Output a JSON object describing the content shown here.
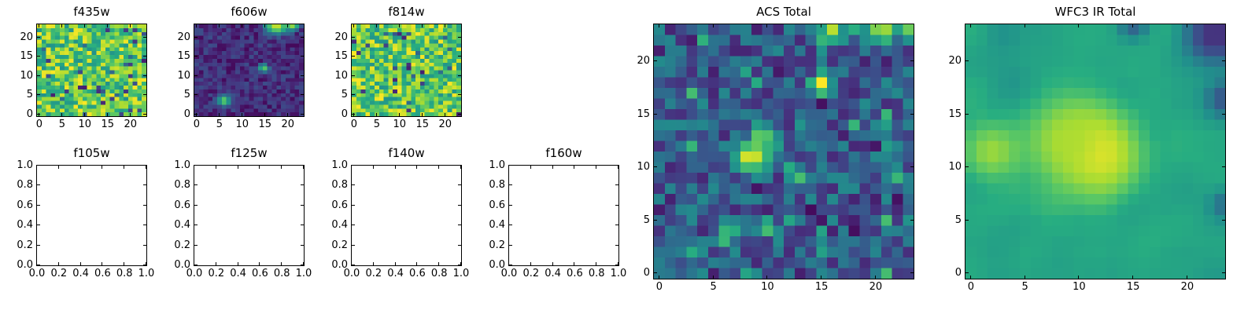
{
  "figure": {
    "background": "#ffffff",
    "text_color": "#000000",
    "axes_color": "#000000"
  },
  "viridis_stops": [
    [
      0.0,
      "#440154"
    ],
    [
      0.125,
      "#472f7d"
    ],
    [
      0.25,
      "#3b518b"
    ],
    [
      0.375,
      "#2c718e"
    ],
    [
      0.5,
      "#21918c"
    ],
    [
      0.625,
      "#27ad81"
    ],
    [
      0.75,
      "#5cc863"
    ],
    [
      0.875,
      "#aadc32"
    ],
    [
      1.0,
      "#fde725"
    ]
  ],
  "chart_data": [
    {
      "type": "heatmap",
      "title": "f435w",
      "colormap": "viridis",
      "grid": 24,
      "xlim": [
        -0.5,
        23.5
      ],
      "ylim": [
        -0.5,
        23.5
      ],
      "xticks": {
        "values": [
          0,
          5,
          10,
          15,
          20
        ],
        "labels": [
          "0",
          "5",
          "10",
          "15",
          "20"
        ]
      },
      "yticks": {
        "values": [
          0,
          5,
          10,
          15,
          20
        ],
        "labels": [
          "0",
          "5",
          "10",
          "15",
          "20"
        ]
      },
      "seed": 11,
      "smooth": 0,
      "base": {
        "min": 0.5,
        "range": 0.5,
        "dark_frac": 0.06,
        "dark_min": 0.08,
        "dark_range": 0.3
      },
      "blobs": []
    },
    {
      "type": "heatmap",
      "title": "f606w",
      "colormap": "viridis",
      "grid": 24,
      "xlim": [
        -0.5,
        23.5
      ],
      "ylim": [
        -0.5,
        23.5
      ],
      "xticks": {
        "values": [
          0,
          5,
          10,
          15,
          20
        ],
        "labels": [
          "0",
          "5",
          "10",
          "15",
          "20"
        ]
      },
      "yticks": {
        "values": [
          0,
          5,
          10,
          15,
          20
        ],
        "labels": [
          "0",
          "5",
          "10",
          "15",
          "20"
        ]
      },
      "seed": 22,
      "smooth": 0,
      "base": {
        "min": 0.02,
        "range": 0.22,
        "dark_frac": 0,
        "dark_min": 0,
        "dark_range": 0
      },
      "blobs": [
        {
          "x": 17.5,
          "y": 23.3,
          "v": 0.95,
          "r": 1.7
        },
        {
          "x": 21.0,
          "y": 23.5,
          "v": 0.9,
          "r": 1.0
        },
        {
          "x": 14.7,
          "y": 12.0,
          "v": 0.78,
          "r": 0.75
        },
        {
          "x": 6.0,
          "y": 3.5,
          "v": 0.8,
          "r": 0.95
        }
      ]
    },
    {
      "type": "heatmap",
      "title": "f814w",
      "colormap": "viridis",
      "grid": 24,
      "xlim": [
        -0.5,
        23.5
      ],
      "ylim": [
        -0.5,
        23.5
      ],
      "xticks": {
        "values": [
          0,
          5,
          10,
          15,
          20
        ],
        "labels": [
          "0",
          "5",
          "10",
          "15",
          "20"
        ]
      },
      "yticks": {
        "values": [
          0,
          5,
          10,
          15,
          20
        ],
        "labels": [
          "0",
          "5",
          "10",
          "15",
          "20"
        ]
      },
      "seed": 33,
      "smooth": 0,
      "base": {
        "min": 0.5,
        "range": 0.5,
        "dark_frac": 0.05,
        "dark_min": 0.08,
        "dark_range": 0.3
      },
      "blobs": []
    },
    {
      "type": "heatmap",
      "title": "ACS Total",
      "colormap": "viridis",
      "grid": 24,
      "xlim": [
        -0.5,
        23.5
      ],
      "ylim": [
        -0.5,
        23.5
      ],
      "xticks": {
        "values": [
          0,
          5,
          10,
          15,
          20
        ],
        "labels": [
          "0",
          "5",
          "10",
          "15",
          "20"
        ]
      },
      "yticks": {
        "values": [
          0,
          5,
          10,
          15,
          20
        ],
        "labels": [
          "0",
          "5",
          "10",
          "15",
          "20"
        ]
      },
      "seed": 44,
      "smooth": 0,
      "base": {
        "min": 0.08,
        "range": 0.4,
        "dark_frac": 0.05,
        "dark_min": 0.02,
        "dark_range": 0.1,
        "bright_frac": 0.05,
        "bright_min": 0.5,
        "bright_range": 0.2
      },
      "blobs": [
        {
          "x": 8.5,
          "y": 11.0,
          "v": 1.0,
          "r": 1.15
        },
        {
          "x": 9.6,
          "y": 12.8,
          "v": 0.8,
          "r": 0.85
        },
        {
          "x": 15.0,
          "y": 18.0,
          "v": 1.0,
          "r": 0.65
        },
        {
          "x": 16.0,
          "y": 23.3,
          "v": 0.95,
          "r": 0.85
        },
        {
          "x": 20.5,
          "y": 23.5,
          "v": 0.92,
          "r": 1.25
        },
        {
          "x": 23.3,
          "y": 23.5,
          "v": 0.9,
          "r": 0.7
        },
        {
          "x": 13.0,
          "y": 9.0,
          "v": 0.7,
          "r": 0.7
        },
        {
          "x": 6.5,
          "y": 4.0,
          "v": 0.72,
          "r": 0.85
        },
        {
          "x": 3.0,
          "y": 2.0,
          "v": 0.62,
          "r": 0.8
        },
        {
          "x": 21.5,
          "y": 10.5,
          "v": 0.55,
          "r": 0.65
        }
      ]
    },
    {
      "type": "heatmap",
      "title": "WFC3 IR Total",
      "colormap": "viridis",
      "grid": 24,
      "xlim": [
        -0.5,
        23.5
      ],
      "ylim": [
        -0.5,
        23.5
      ],
      "xticks": {
        "values": [
          0,
          5,
          10,
          15,
          20
        ],
        "labels": [
          "0",
          "5",
          "10",
          "15",
          "20"
        ]
      },
      "yticks": {
        "values": [
          0,
          5,
          10,
          15,
          20
        ],
        "labels": [
          "0",
          "5",
          "10",
          "15",
          "20"
        ]
      },
      "seed": 55,
      "smooth": 2,
      "base": {
        "min": 0.42,
        "range": 0.34,
        "dark_frac": 0,
        "dark_min": 0,
        "dark_range": 0
      },
      "blobs": [
        {
          "x": 11.5,
          "y": 11.5,
          "v": 1.0,
          "r": 3.0
        },
        {
          "x": 9.0,
          "y": 12.5,
          "v": 0.88,
          "r": 2.6
        },
        {
          "x": 2.0,
          "y": 11.5,
          "v": 0.85,
          "r": 2.0
        },
        {
          "x": 22.5,
          "y": 22.5,
          "v": 0.12,
          "r": 2.1
        },
        {
          "x": 23.5,
          "y": 16.5,
          "v": 0.25,
          "r": 1.3
        },
        {
          "x": 15.0,
          "y": 23.5,
          "v": 0.3,
          "r": 1.0
        },
        {
          "x": 23.5,
          "y": 6.5,
          "v": 0.35,
          "r": 0.9
        },
        {
          "x": 3.0,
          "y": 22.5,
          "v": 0.5,
          "r": 1.2
        }
      ]
    },
    {
      "type": "empty",
      "title": "f105w",
      "xlim": [
        0,
        1
      ],
      "ylim": [
        0,
        1
      ],
      "xticks": {
        "values": [
          0,
          0.2,
          0.4,
          0.6,
          0.8,
          1.0
        ],
        "labels": [
          "0.0",
          "0.2",
          "0.4",
          "0.6",
          "0.8",
          "1.0"
        ]
      },
      "yticks": {
        "values": [
          0,
          0.2,
          0.4,
          0.6,
          0.8,
          1.0
        ],
        "labels": [
          "0.0",
          "0.2",
          "0.4",
          "0.6",
          "0.8",
          "1.0"
        ]
      }
    },
    {
      "type": "empty",
      "title": "f125w",
      "xlim": [
        0,
        1
      ],
      "ylim": [
        0,
        1
      ],
      "xticks": {
        "values": [
          0,
          0.2,
          0.4,
          0.6,
          0.8,
          1.0
        ],
        "labels": [
          "0.0",
          "0.2",
          "0.4",
          "0.6",
          "0.8",
          "1.0"
        ]
      },
      "yticks": {
        "values": [
          0,
          0.2,
          0.4,
          0.6,
          0.8,
          1.0
        ],
        "labels": [
          "0.0",
          "0.2",
          "0.4",
          "0.6",
          "0.8",
          "1.0"
        ]
      }
    },
    {
      "type": "empty",
      "title": "f140w",
      "xlim": [
        0,
        1
      ],
      "ylim": [
        0,
        1
      ],
      "xticks": {
        "values": [
          0,
          0.2,
          0.4,
          0.6,
          0.8,
          1.0
        ],
        "labels": [
          "0.0",
          "0.2",
          "0.4",
          "0.6",
          "0.8",
          "1.0"
        ]
      },
      "yticks": {
        "values": [
          0,
          0.2,
          0.4,
          0.6,
          0.8,
          1.0
        ],
        "labels": [
          "0.0",
          "0.2",
          "0.4",
          "0.6",
          "0.8",
          "1.0"
        ]
      }
    },
    {
      "type": "empty",
      "title": "f160w",
      "xlim": [
        0,
        1
      ],
      "ylim": [
        0,
        1
      ],
      "xticks": {
        "values": [
          0,
          0.2,
          0.4,
          0.6,
          0.8,
          1.0
        ],
        "labels": [
          "0.0",
          "0.2",
          "0.4",
          "0.6",
          "0.8",
          "1.0"
        ]
      },
      "yticks": {
        "values": [
          0,
          0.2,
          0.4,
          0.6,
          0.8,
          1.0
        ],
        "labels": [
          "0.0",
          "0.2",
          "0.4",
          "0.6",
          "0.8",
          "1.0"
        ]
      }
    }
  ]
}
